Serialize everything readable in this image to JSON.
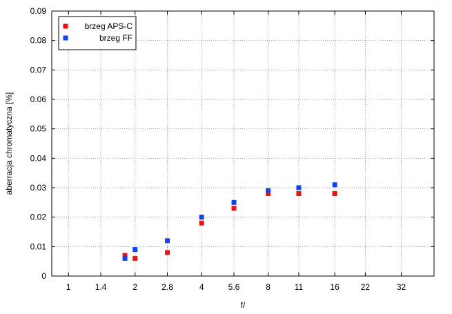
{
  "chart_data": {
    "type": "scatter",
    "xlabel": "f/",
    "ylabel": "aberracja chromatyczna [%]",
    "x_scale": "log2",
    "x_ticks": [
      "1",
      "1.4",
      "2",
      "2.8",
      "4",
      "5.6",
      "8",
      "11",
      "16",
      "22",
      "32"
    ],
    "xlim": [
      0.84,
      45.0
    ],
    "ylim": [
      0,
      0.09
    ],
    "y_ticks": [
      "0",
      "0.01",
      "0.02",
      "0.03",
      "0.04",
      "0.05",
      "0.06",
      "0.07",
      "0.08",
      "0.09"
    ],
    "grid": true,
    "legend_position": "top-left",
    "series": [
      {
        "name": "brzeg APS-C",
        "color": "#ee1111",
        "marker": "square",
        "x": [
          1.8,
          2,
          2.8,
          4,
          5.6,
          8,
          11,
          16
        ],
        "y": [
          0.007,
          0.006,
          0.008,
          0.018,
          0.023,
          0.028,
          0.028,
          0.028
        ]
      },
      {
        "name": "brzeg FF",
        "color": "#1144ee",
        "marker": "square",
        "x": [
          1.8,
          2,
          2.8,
          4,
          5.6,
          8,
          11,
          16
        ],
        "y": [
          0.006,
          0.009,
          0.012,
          0.02,
          0.025,
          0.029,
          0.03,
          0.031
        ]
      }
    ]
  }
}
